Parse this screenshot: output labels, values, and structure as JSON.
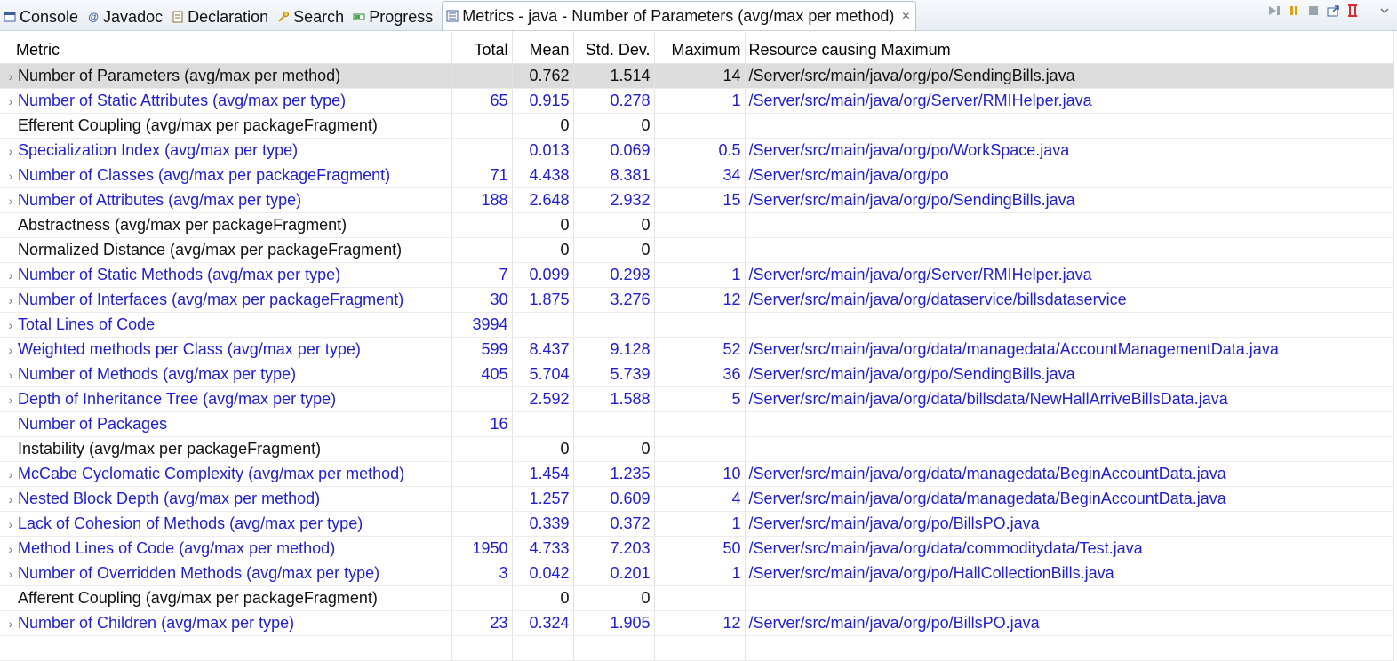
{
  "tabs": [
    {
      "label": "Console",
      "icon": "console-icon"
    },
    {
      "label": "Javadoc",
      "icon": "javadoc-icon"
    },
    {
      "label": "Declaration",
      "icon": "declaration-icon"
    },
    {
      "label": "Search",
      "icon": "search-icon"
    },
    {
      "label": "Progress",
      "icon": "progress-icon"
    },
    {
      "label": "Metrics - java - Number of Parameters (avg/max per method)",
      "icon": "metrics-icon",
      "active": true
    }
  ],
  "columns": {
    "metric": "Metric",
    "total": "Total",
    "mean": "Mean",
    "stddev": "Std. Dev.",
    "maximum": "Maximum",
    "resource": "Resource causing Maximum"
  },
  "rows": [
    {
      "metric": "Number of Parameters (avg/max per method)",
      "total": "",
      "mean": "0.762",
      "stddev": "1.514",
      "max": "14",
      "resource": "/Server/src/main/java/org/po/SendingBills.java",
      "expandable": true,
      "link": false,
      "selected": true
    },
    {
      "metric": "Number of Static Attributes (avg/max per type)",
      "total": "65",
      "mean": "0.915",
      "stddev": "0.278",
      "max": "1",
      "resource": "/Server/src/main/java/org/Server/RMIHelper.java",
      "expandable": true,
      "link": true
    },
    {
      "metric": "Efferent Coupling (avg/max per packageFragment)",
      "total": "",
      "mean": "0",
      "stddev": "0",
      "max": "",
      "resource": "",
      "expandable": false,
      "link": false
    },
    {
      "metric": "Specialization Index (avg/max per type)",
      "total": "",
      "mean": "0.013",
      "stddev": "0.069",
      "max": "0.5",
      "resource": "/Server/src/main/java/org/po/WorkSpace.java",
      "expandable": true,
      "link": true
    },
    {
      "metric": "Number of Classes (avg/max per packageFragment)",
      "total": "71",
      "mean": "4.438",
      "stddev": "8.381",
      "max": "34",
      "resource": "/Server/src/main/java/org/po",
      "expandable": true,
      "link": true
    },
    {
      "metric": "Number of Attributes (avg/max per type)",
      "total": "188",
      "mean": "2.648",
      "stddev": "2.932",
      "max": "15",
      "resource": "/Server/src/main/java/org/po/SendingBills.java",
      "expandable": true,
      "link": true
    },
    {
      "metric": "Abstractness (avg/max per packageFragment)",
      "total": "",
      "mean": "0",
      "stddev": "0",
      "max": "",
      "resource": "",
      "expandable": false,
      "link": false
    },
    {
      "metric": "Normalized Distance (avg/max per packageFragment)",
      "total": "",
      "mean": "0",
      "stddev": "0",
      "max": "",
      "resource": "",
      "expandable": false,
      "link": false
    },
    {
      "metric": "Number of Static Methods (avg/max per type)",
      "total": "7",
      "mean": "0.099",
      "stddev": "0.298",
      "max": "1",
      "resource": "/Server/src/main/java/org/Server/RMIHelper.java",
      "expandable": true,
      "link": true
    },
    {
      "metric": "Number of Interfaces (avg/max per packageFragment)",
      "total": "30",
      "mean": "1.875",
      "stddev": "3.276",
      "max": "12",
      "resource": "/Server/src/main/java/org/dataservice/billsdataservice",
      "expandable": true,
      "link": true
    },
    {
      "metric": "Total Lines of Code",
      "total": "3994",
      "mean": "",
      "stddev": "",
      "max": "",
      "resource": "",
      "expandable": true,
      "link": true
    },
    {
      "metric": "Weighted methods per Class (avg/max per type)",
      "total": "599",
      "mean": "8.437",
      "stddev": "9.128",
      "max": "52",
      "resource": "/Server/src/main/java/org/data/managedata/AccountManagementData.java",
      "expandable": true,
      "link": true
    },
    {
      "metric": "Number of Methods (avg/max per type)",
      "total": "405",
      "mean": "5.704",
      "stddev": "5.739",
      "max": "36",
      "resource": "/Server/src/main/java/org/po/SendingBills.java",
      "expandable": true,
      "link": true
    },
    {
      "metric": "Depth of Inheritance Tree (avg/max per type)",
      "total": "",
      "mean": "2.592",
      "stddev": "1.588",
      "max": "5",
      "resource": "/Server/src/main/java/org/data/billsdata/NewHallArriveBillsData.java",
      "expandable": true,
      "link": true
    },
    {
      "metric": "Number of Packages",
      "total": "16",
      "mean": "",
      "stddev": "",
      "max": "",
      "resource": "",
      "expandable": false,
      "link": true
    },
    {
      "metric": "Instability (avg/max per packageFragment)",
      "total": "",
      "mean": "0",
      "stddev": "0",
      "max": "",
      "resource": "",
      "expandable": false,
      "link": false
    },
    {
      "metric": "McCabe Cyclomatic Complexity (avg/max per method)",
      "total": "",
      "mean": "1.454",
      "stddev": "1.235",
      "max": "10",
      "resource": "/Server/src/main/java/org/data/managedata/BeginAccountData.java",
      "expandable": true,
      "link": true
    },
    {
      "metric": "Nested Block Depth (avg/max per method)",
      "total": "",
      "mean": "1.257",
      "stddev": "0.609",
      "max": "4",
      "resource": "/Server/src/main/java/org/data/managedata/BeginAccountData.java",
      "expandable": true,
      "link": true
    },
    {
      "metric": "Lack of Cohesion of Methods (avg/max per type)",
      "total": "",
      "mean": "0.339",
      "stddev": "0.372",
      "max": "1",
      "resource": "/Server/src/main/java/org/po/BillsPO.java",
      "expandable": true,
      "link": true
    },
    {
      "metric": "Method Lines of Code (avg/max per method)",
      "total": "1950",
      "mean": "4.733",
      "stddev": "7.203",
      "max": "50",
      "resource": "/Server/src/main/java/org/data/commoditydata/Test.java",
      "expandable": true,
      "link": true
    },
    {
      "metric": "Number of Overridden Methods (avg/max per type)",
      "total": "3",
      "mean": "0.042",
      "stddev": "0.201",
      "max": "1",
      "resource": "/Server/src/main/java/org/po/HallCollectionBills.java",
      "expandable": true,
      "link": true
    },
    {
      "metric": "Afferent Coupling (avg/max per packageFragment)",
      "total": "",
      "mean": "0",
      "stddev": "0",
      "max": "",
      "resource": "",
      "expandable": false,
      "link": false
    },
    {
      "metric": "Number of Children (avg/max per type)",
      "total": "23",
      "mean": "0.324",
      "stddev": "1.905",
      "max": "12",
      "resource": "/Server/src/main/java/org/po/BillsPO.java",
      "expandable": true,
      "link": true
    }
  ],
  "colors": {
    "link": "#1f1fcf",
    "selected_row": "#dcdcdc"
  }
}
